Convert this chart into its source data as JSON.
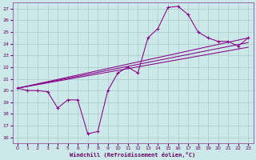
{
  "xlabel": "Windchill (Refroidissement éolien,°C)",
  "bg_color": "#cce8e8",
  "grid_color": "#aacccc",
  "line_color": "#880088",
  "xlim": [
    -0.5,
    23.5
  ],
  "ylim": [
    15.5,
    27.5
  ],
  "xticks": [
    0,
    1,
    2,
    3,
    4,
    5,
    6,
    7,
    8,
    9,
    10,
    11,
    12,
    13,
    14,
    15,
    16,
    17,
    18,
    19,
    20,
    21,
    22,
    23
  ],
  "yticks": [
    16,
    17,
    18,
    19,
    20,
    21,
    22,
    23,
    24,
    25,
    26,
    27
  ],
  "main_x": [
    0,
    1,
    2,
    3,
    4,
    5,
    6,
    7,
    8,
    9,
    10,
    11,
    12,
    13,
    14,
    15,
    16,
    17,
    18,
    19,
    20,
    21,
    22,
    23
  ],
  "main_y": [
    20.2,
    20.0,
    20.0,
    19.9,
    18.5,
    19.2,
    19.2,
    16.3,
    16.5,
    20.0,
    21.5,
    22.0,
    21.5,
    24.5,
    25.3,
    27.1,
    27.2,
    26.5,
    25.0,
    24.5,
    24.2,
    24.2,
    23.8,
    24.5
  ],
  "trend1_x": [
    0,
    23
  ],
  "trend1_y": [
    20.2,
    24.5
  ],
  "trend2_x": [
    0,
    23
  ],
  "trend2_y": [
    20.2,
    24.1
  ],
  "trend3_x": [
    0,
    23
  ],
  "trend3_y": [
    20.2,
    23.7
  ]
}
